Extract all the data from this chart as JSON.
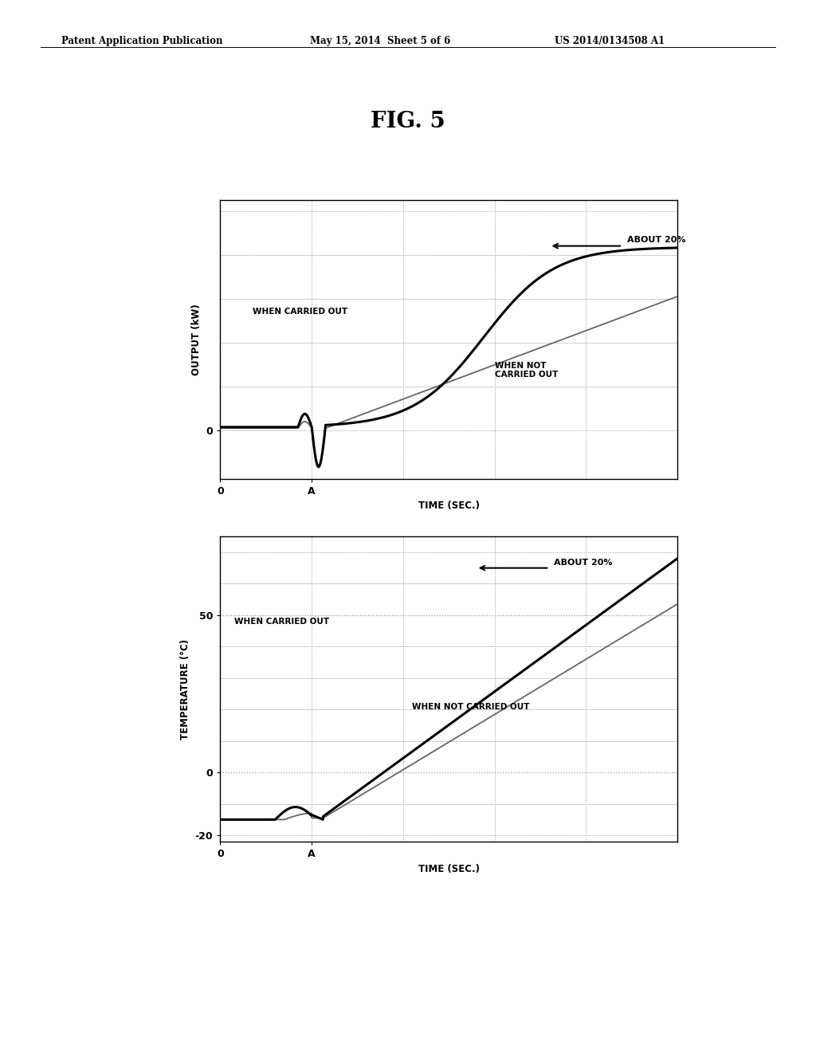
{
  "fig_title": "FIG. 5",
  "header_left": "Patent Application Publication",
  "header_mid": "May 15, 2014  Sheet 5 of 6",
  "header_right": "US 2014/0134508 A1",
  "top_plot": {
    "ylabel": "OUTPUT (kW)",
    "xlabel": "TIME (SEC.)",
    "annotation_about20": "ABOUT 20%",
    "annotation_carried": "WHEN CARRIED OUT",
    "annotation_not_carried": "WHEN NOT\nCARRIED OUT"
  },
  "bottom_plot": {
    "ylabel": "TEMPERATURE (°C)",
    "xlabel": "TIME (SEC.)",
    "ytick_values": [
      -20,
      0,
      50
    ],
    "ytick_labels": [
      "-20",
      "0",
      "50"
    ],
    "annotation_about20": "ABOUT 20%",
    "annotation_carried": "WHEN CARRIED OUT",
    "annotation_not_carried": "WHEN NOT CARRIED OUT"
  },
  "background_color": "#ffffff"
}
